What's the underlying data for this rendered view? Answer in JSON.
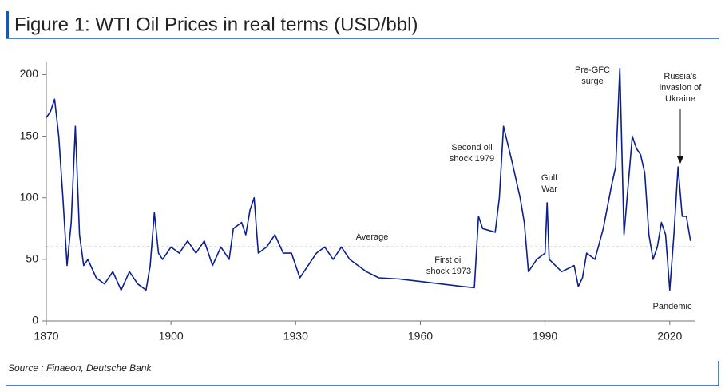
{
  "chart_data": {
    "type": "line",
    "title": "Figure 1: WTI Oil Prices in real terms (USD/bbl)",
    "source": "Source : Finaeon, Deutsche Bank",
    "x": [
      1870,
      1871,
      1872,
      1873,
      1874,
      1875,
      1876,
      1877,
      1878,
      1879,
      1880,
      1882,
      1884,
      1886,
      1888,
      1890,
      1892,
      1894,
      1895,
      1896,
      1897,
      1898,
      1900,
      1902,
      1904,
      1906,
      1908,
      1910,
      1912,
      1914,
      1915,
      1917,
      1918,
      1919,
      1920,
      1921,
      1923,
      1925,
      1927,
      1929,
      1931,
      1933,
      1935,
      1937,
      1939,
      1941,
      1943,
      1945,
      1947,
      1950,
      1955,
      1960,
      1965,
      1970,
      1973,
      1974,
      1975,
      1978,
      1979,
      1980,
      1982,
      1984,
      1985,
      1986,
      1988,
      1990,
      1990.5,
      1991,
      1994,
      1997,
      1998,
      1999,
      2000,
      2002,
      2004,
      2006,
      2007,
      2008,
      2009,
      2010,
      2011,
      2012,
      2013,
      2014,
      2015,
      2016,
      2017,
      2018,
      2019,
      2020,
      2021,
      2022,
      2023,
      2024,
      2025
    ],
    "series": [
      {
        "name": "WTI",
        "color": "#0c1f8f",
        "values": [
          165,
          170,
          180,
          150,
          100,
          45,
          80,
          158,
          70,
          45,
          50,
          35,
          30,
          40,
          25,
          40,
          30,
          25,
          45,
          88,
          55,
          50,
          60,
          55,
          65,
          55,
          65,
          45,
          60,
          50,
          75,
          80,
          70,
          90,
          100,
          55,
          60,
          70,
          55,
          55,
          35,
          45,
          55,
          60,
          50,
          60,
          50,
          45,
          40,
          35,
          34,
          32,
          30,
          28,
          27,
          85,
          75,
          72,
          100,
          158,
          130,
          100,
          80,
          40,
          50,
          55,
          96,
          50,
          40,
          45,
          28,
          35,
          55,
          50,
          75,
          110,
          125,
          205,
          70,
          110,
          150,
          140,
          135,
          120,
          70,
          50,
          60,
          80,
          70,
          25,
          70,
          125,
          85,
          85,
          65
        ]
      }
    ],
    "average": 60,
    "xlim": [
      1870,
      2026
    ],
    "xticks": [
      1870,
      1900,
      1930,
      1960,
      1990,
      2020
    ],
    "ylim": [
      0,
      210
    ],
    "yticks": [
      0,
      50,
      100,
      150,
      200
    ],
    "annotations": [
      [
        "Average"
      ],
      [
        "First oil",
        "shock 1973"
      ],
      [
        "Second oil",
        "shock 1979"
      ],
      [
        "Gulf",
        "War"
      ],
      [
        "Pre-GFC",
        "surge"
      ],
      [
        "Russia's",
        "invasion of",
        "Ukraine"
      ],
      [
        "Pandemic"
      ]
    ]
  }
}
